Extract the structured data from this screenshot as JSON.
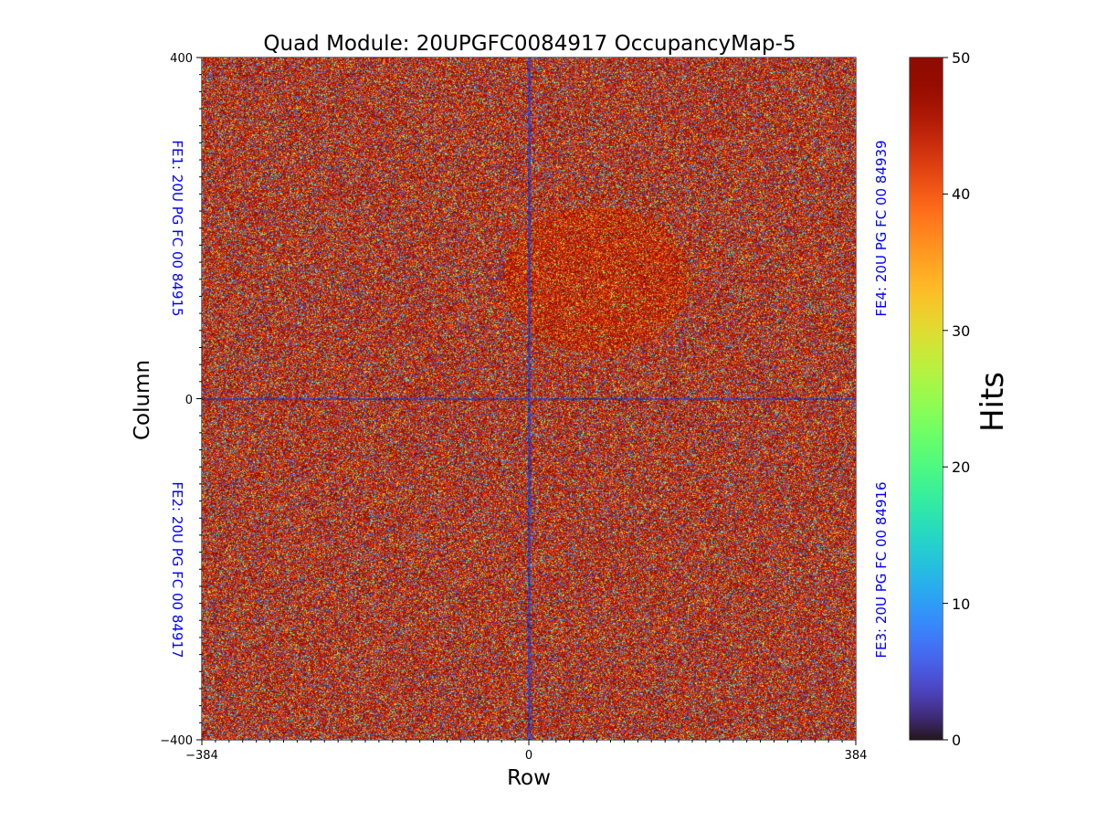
{
  "chart_data": {
    "type": "heatmap",
    "title": "Quad Module: 20UPGFC0084917 OccupancyMap-5",
    "xlabel": "Row",
    "ylabel": "Column",
    "xlim": [
      -384,
      384
    ],
    "ylim": [
      -400,
      400
    ],
    "x_ticks": [
      "−384",
      "0",
      "384"
    ],
    "y_ticks": [
      "400",
      "0",
      "−400"
    ],
    "colorbar": {
      "label": "Hits",
      "range": [
        0,
        50
      ],
      "ticks": [
        "0",
        "10",
        "20",
        "30",
        "40",
        "50"
      ],
      "colormap": "turbo"
    },
    "chips": [
      {
        "id": "FE1",
        "label": "FE1: 20U PG FC 00 84915",
        "quadrant": "top-left"
      },
      {
        "id": "FE2",
        "label": "FE2: 20U PG FC 00 84917",
        "quadrant": "bottom-left"
      },
      {
        "id": "FE3",
        "label": "FE3: 20U PG FC 00 84916",
        "quadrant": "bottom-right"
      },
      {
        "id": "FE4",
        "label": "FE4: 20U PG FC 00 84939",
        "quadrant": "top-right"
      }
    ],
    "data_summary": {
      "dominant_value_range": [
        40,
        50
      ],
      "low_occupancy_lines": [
        "column boundary at Row 0",
        "row boundary at Column 0"
      ],
      "dense_region": "FE4 upper-left area near Row 0 to 160, Column 80 to 200"
    },
    "colors": {
      "chip_label": "#0000ff",
      "boundary_line": "#1a1a4a"
    }
  }
}
